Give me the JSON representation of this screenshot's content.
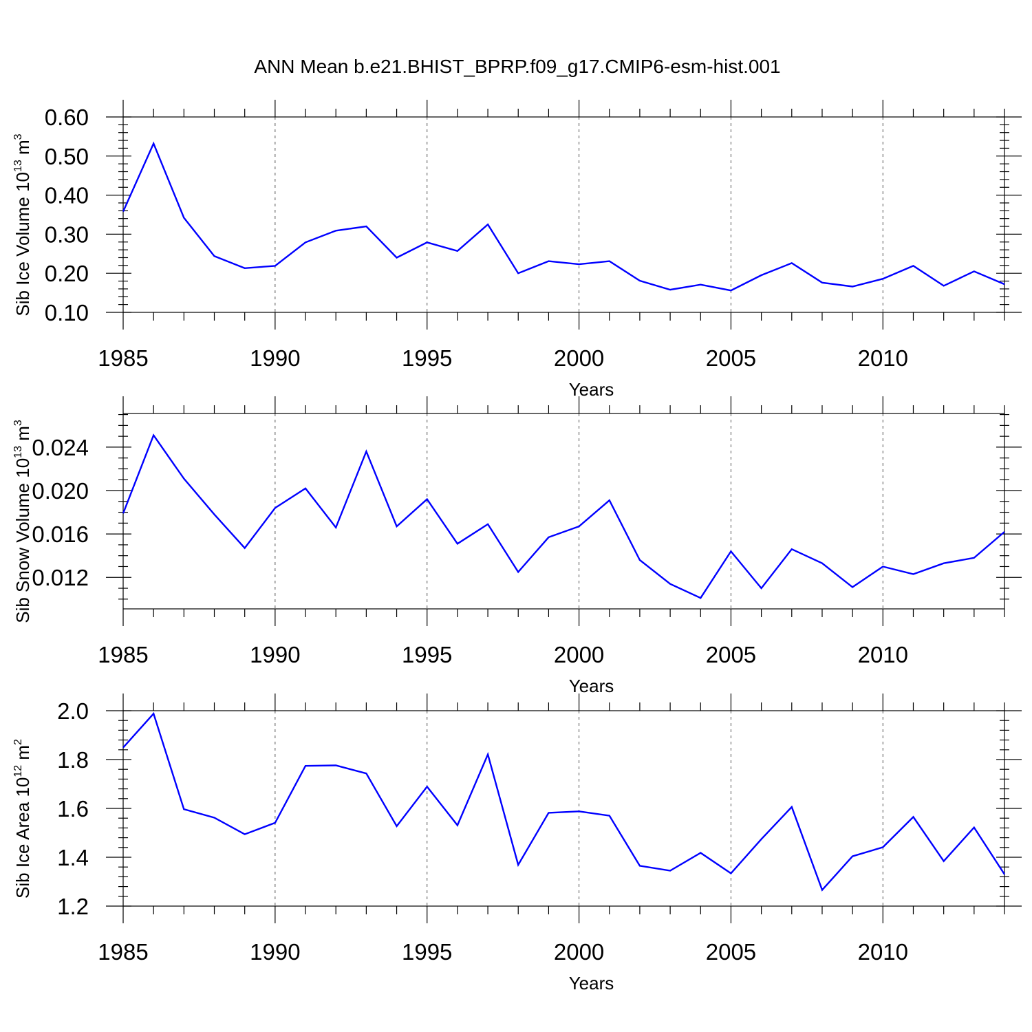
{
  "title": "ANN Mean b.e21.BHIST_BPRP.f09_g17.CMIP6-esm-hist.001",
  "chart_data": [
    {
      "type": "line",
      "name": "ice-volume",
      "ylabel": "Sib Ice Volume 10",
      "ylabel_exp": "13",
      "ylabel_unit": " m",
      "ylabel_unit_exp": "3",
      "xlabel": "Years",
      "xlim": [
        1985,
        2014
      ],
      "ylim": [
        0.1,
        0.6
      ],
      "yticks": [
        0.1,
        0.2,
        0.3,
        0.4,
        0.5,
        0.6
      ],
      "ytick_labels": [
        "0.10",
        "0.20",
        "0.30",
        "0.40",
        "0.50",
        "0.60"
      ],
      "yminor_step": 0.02,
      "xticks": [
        1985,
        1990,
        1995,
        2000,
        2005,
        2010
      ],
      "xtick_labels": [
        "1985",
        "1990",
        "1995",
        "2000",
        "2005",
        "2010"
      ],
      "x": [
        1985,
        1986,
        1987,
        1988,
        1989,
        1990,
        1991,
        1992,
        1993,
        1994,
        1995,
        1996,
        1997,
        1998,
        1999,
        2000,
        2001,
        2002,
        2003,
        2004,
        2005,
        2006,
        2007,
        2008,
        2009,
        2010,
        2011,
        2012,
        2013,
        2014
      ],
      "values": [
        0.358,
        0.532,
        0.342,
        0.244,
        0.213,
        0.219,
        0.279,
        0.309,
        0.32,
        0.24,
        0.279,
        0.257,
        0.325,
        0.2,
        0.231,
        0.223,
        0.231,
        0.181,
        0.158,
        0.171,
        0.156,
        0.195,
        0.226,
        0.176,
        0.166,
        0.186,
        0.219,
        0.168,
        0.205,
        0.172
      ]
    },
    {
      "type": "line",
      "name": "snow-volume",
      "ylabel": "Sib Snow Volume 10",
      "ylabel_exp": "13",
      "ylabel_unit": " m",
      "ylabel_unit_exp": "3",
      "xlabel": "Years",
      "xlim": [
        1985,
        2014
      ],
      "ylim": [
        0.0091,
        0.0271
      ],
      "yticks": [
        0.012,
        0.016,
        0.02,
        0.024
      ],
      "ytick_labels": [
        "0.012",
        "0.016",
        "0.020",
        "0.024"
      ],
      "yminor_step": 0.001,
      "xticks": [
        1985,
        1990,
        1995,
        2000,
        2005,
        2010
      ],
      "xtick_labels": [
        "1985",
        "1990",
        "1995",
        "2000",
        "2005",
        "2010"
      ],
      "x": [
        1985,
        1986,
        1987,
        1988,
        1989,
        1990,
        1991,
        1992,
        1993,
        1994,
        1995,
        1996,
        1997,
        1998,
        1999,
        2000,
        2001,
        2002,
        2003,
        2004,
        2005,
        2006,
        2007,
        2008,
        2009,
        2010,
        2011,
        2012,
        2013,
        2014
      ],
      "values": [
        0.0179,
        0.0251,
        0.0211,
        0.0178,
        0.0147,
        0.0184,
        0.0202,
        0.0166,
        0.0236,
        0.0167,
        0.0192,
        0.0151,
        0.0169,
        0.0125,
        0.0157,
        0.0167,
        0.0191,
        0.0136,
        0.0114,
        0.0101,
        0.0144,
        0.011,
        0.0146,
        0.0133,
        0.0111,
        0.013,
        0.0123,
        0.0133,
        0.0138,
        0.0162
      ]
    },
    {
      "type": "line",
      "name": "ice-area",
      "ylabel": "Sib Ice Area 10",
      "ylabel_exp": "12",
      "ylabel_unit": " m",
      "ylabel_unit_exp": "2",
      "xlabel": "Years",
      "xlim": [
        1985,
        2014
      ],
      "ylim": [
        1.2,
        2.0
      ],
      "yticks": [
        1.2,
        1.4,
        1.6,
        1.8,
        2.0
      ],
      "ytick_labels": [
        "1.2",
        "1.4",
        "1.6",
        "1.8",
        "2.0"
      ],
      "yminor_step": 0.04,
      "xticks": [
        1985,
        1990,
        1995,
        2000,
        2005,
        2010
      ],
      "xtick_labels": [
        "1985",
        "1990",
        "1995",
        "2000",
        "2005",
        "2010"
      ],
      "x": [
        1985,
        1986,
        1987,
        1988,
        1989,
        1990,
        1991,
        1992,
        1993,
        1994,
        1995,
        1996,
        1997,
        1998,
        1999,
        2000,
        2001,
        2002,
        2003,
        2004,
        2005,
        2006,
        2007,
        2008,
        2009,
        2010,
        2011,
        2012,
        2013,
        2014
      ],
      "values": [
        1.849,
        1.988,
        1.597,
        1.562,
        1.494,
        1.541,
        1.774,
        1.776,
        1.743,
        1.527,
        1.689,
        1.531,
        1.821,
        1.369,
        1.582,
        1.588,
        1.57,
        1.365,
        1.345,
        1.418,
        1.334,
        1.474,
        1.606,
        1.266,
        1.404,
        1.441,
        1.565,
        1.384,
        1.522,
        1.33
      ]
    }
  ]
}
